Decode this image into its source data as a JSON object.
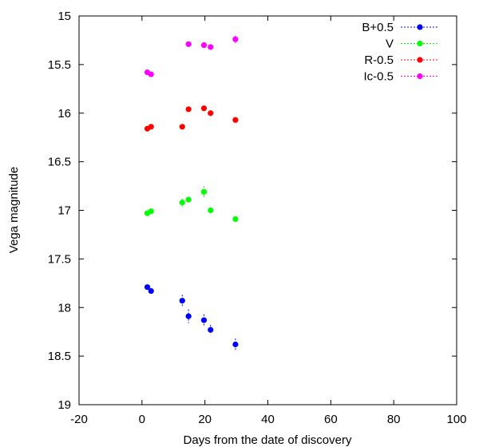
{
  "chart_data": {
    "type": "scatter",
    "title": "",
    "xlabel": "Days from the date of discovery",
    "ylabel": "Vega magnitude",
    "xlim": [
      -20,
      100
    ],
    "ylim": [
      15,
      19
    ],
    "y_inverted": true,
    "xticks": [
      -20,
      0,
      20,
      40,
      60,
      80,
      100
    ],
    "yticks": [
      15,
      15.5,
      16,
      16.5,
      17,
      17.5,
      18,
      18.5,
      19
    ],
    "grid": false,
    "legend_position": "top-right",
    "series": [
      {
        "name": "B+0.5",
        "color": "#0000ff",
        "points": [
          {
            "x": 1.7,
            "y": 17.79,
            "err": 0.02
          },
          {
            "x": 2.9,
            "y": 17.83,
            "err": 0.03
          },
          {
            "x": 12.8,
            "y": 17.93,
            "err": 0.06
          },
          {
            "x": 14.8,
            "y": 18.09,
            "err": 0.07
          },
          {
            "x": 19.7,
            "y": 18.13,
            "err": 0.06
          },
          {
            "x": 21.8,
            "y": 18.23,
            "err": 0.05
          },
          {
            "x": 29.7,
            "y": 18.38,
            "err": 0.06
          }
        ]
      },
      {
        "name": "V",
        "color": "#00ff00",
        "points": [
          {
            "x": 1.7,
            "y": 17.03,
            "err": 0.02
          },
          {
            "x": 2.9,
            "y": 17.01,
            "err": 0.02
          },
          {
            "x": 12.8,
            "y": 16.92,
            "err": 0.04
          },
          {
            "x": 14.8,
            "y": 16.89,
            "err": 0.02
          },
          {
            "x": 19.7,
            "y": 16.81,
            "err": 0.06
          },
          {
            "x": 21.8,
            "y": 17.0,
            "err": 0.02
          },
          {
            "x": 29.7,
            "y": 17.09,
            "err": 0.03
          }
        ]
      },
      {
        "name": "R-0.5",
        "color": "#ff0000",
        "points": [
          {
            "x": 1.7,
            "y": 16.16,
            "err": 0.02
          },
          {
            "x": 2.9,
            "y": 16.14,
            "err": 0.02
          },
          {
            "x": 12.8,
            "y": 16.14,
            "err": 0.02
          },
          {
            "x": 14.8,
            "y": 15.96,
            "err": 0.02
          },
          {
            "x": 19.7,
            "y": 15.95,
            "err": 0.02
          },
          {
            "x": 21.8,
            "y": 16.0,
            "err": 0.02
          },
          {
            "x": 29.7,
            "y": 16.07,
            "err": 0.02
          }
        ]
      },
      {
        "name": "Ic-0.5",
        "color": "#ff00ff",
        "points": [
          {
            "x": 1.7,
            "y": 15.58,
            "err": 0.02
          },
          {
            "x": 2.9,
            "y": 15.6,
            "err": 0.02
          },
          {
            "x": 14.8,
            "y": 15.29,
            "err": 0.02
          },
          {
            "x": 19.7,
            "y": 15.3,
            "err": 0.02
          },
          {
            "x": 21.8,
            "y": 15.32,
            "err": 0.02
          },
          {
            "x": 29.7,
            "y": 15.24,
            "err": 0.04
          }
        ]
      }
    ]
  }
}
